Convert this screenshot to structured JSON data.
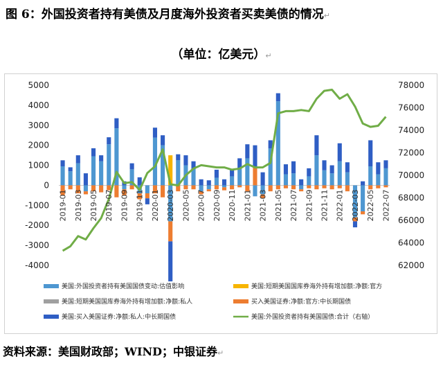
{
  "header": {
    "title": "图 6：外国投资者持有美债及月度海外投资者买卖美债的情况",
    "subtitle": "（单位：亿美元）",
    "source": "资料来源：美国财政部；WIND；中银证券",
    "return_mark": "↵"
  },
  "chart_data": {
    "type": "bar",
    "categories": [
      "2019-01",
      "2019-02",
      "2019-03",
      "2019-04",
      "2019-05",
      "2019-06",
      "2019-07",
      "2019-08",
      "2019-09",
      "2019-10",
      "2019-11",
      "2019-12",
      "2020-01",
      "2020-02",
      "2020-03",
      "2020-04",
      "2020-05",
      "2020-06",
      "2020-07",
      "2020-08",
      "2020-09",
      "2020-10",
      "2020-11",
      "2020-12",
      "2021-01",
      "2021-02",
      "2021-03",
      "2021-04",
      "2021-05",
      "2021-06",
      "2021-07",
      "2021-08",
      "2021-09",
      "2021-10",
      "2021-11",
      "2021-12",
      "2022-01",
      "2022-02",
      "2022-03",
      "2022-04",
      "2022-05",
      "2022-06",
      "2022-07"
    ],
    "xtick_labels": [
      "2019-01",
      "2019-03",
      "2019-05",
      "2019-07",
      "2019-09",
      "2019-11",
      "2020-01",
      "2020-03",
      "2020-05",
      "2020-07",
      "2020-09",
      "2020-11",
      "2021-01",
      "2021-03",
      "2021-05",
      "2021-07",
      "2021-09",
      "2021-11",
      "2022-01",
      "2022-03",
      "2022-05",
      "2022-07"
    ],
    "y_left": {
      "min": -4000,
      "max": 5000,
      "step": 1000
    },
    "y_right": {
      "min": 62000,
      "max": 78000,
      "step": 2000
    },
    "series": [
      {
        "name": "美国:外国投资者持有美国国债变动:估值影响",
        "color": "#4e97d1",
        "stacked": true,
        "values": [
          950,
          700,
          1100,
          -300,
          1450,
          1200,
          2050,
          2850,
          -200,
          800,
          -400,
          -400,
          2380,
          2000,
          -1800,
          1250,
          1000,
          800,
          -300,
          -200,
          380,
          -100,
          450,
          850,
          1350,
          -550,
          -450,
          1850,
          4200,
          550,
          600,
          -200,
          450,
          1500,
          750,
          600,
          1200,
          650,
          -1600,
          -1300,
          950,
          550,
          850
        ]
      },
      {
        "name": "美国:短期美国国库券海外持有增加额:净额:官方",
        "color": "#f7b500",
        "stacked": true,
        "values": [
          0,
          0,
          0,
          0,
          0,
          0,
          0,
          0,
          0,
          0,
          0,
          0,
          0,
          0,
          1500,
          0,
          0,
          0,
          0,
          0,
          0,
          0,
          0,
          0,
          0,
          0,
          0,
          0,
          0,
          0,
          0,
          0,
          0,
          0,
          0,
          0,
          0,
          0,
          0,
          0,
          0,
          0,
          0
        ]
      },
      {
        "name": "美国:短期美国国库券海外持有增加额:净额:私人",
        "color": "#a0a0a0",
        "stacked": true,
        "values": [
          0,
          0,
          0,
          0,
          0,
          0,
          0,
          0,
          0,
          0,
          0,
          0,
          0,
          0,
          0,
          0,
          0,
          0,
          0,
          0,
          0,
          0,
          0,
          0,
          0,
          0,
          0,
          0,
          0,
          0,
          0,
          0,
          0,
          0,
          0,
          0,
          0,
          0,
          0,
          0,
          0,
          0,
          0
        ]
      },
      {
        "name": "买入美国证券:净额:官方:中长期国债",
        "color": "#ed7d31",
        "stacked": true,
        "values": [
          -500,
          -200,
          -400,
          -150,
          -300,
          -350,
          -250,
          -600,
          -300,
          -200,
          -300,
          -250,
          -400,
          -600,
          -1000,
          -300,
          -200,
          -200,
          -150,
          -100,
          -200,
          -150,
          -200,
          -100,
          -300,
          900,
          -200,
          -300,
          -200,
          -150,
          -200,
          -100,
          -150,
          -200,
          -150,
          -200,
          -150,
          -300,
          -200,
          -150,
          -200,
          -150,
          -100
        ]
      },
      {
        "name": "美国:买入美国证券:净额:私人:中长期国债",
        "color": "#2f5ec4",
        "stacked": true,
        "values": [
          300,
          200,
          400,
          600,
          400,
          300,
          350,
          500,
          200,
          300,
          400,
          -300,
          500,
          500,
          -2000,
          300,
          500,
          400,
          300,
          250,
          400,
          300,
          350,
          500,
          700,
          1100,
          650,
          400,
          400,
          500,
          600,
          300,
          400,
          1000,
          500,
          400,
          900,
          500,
          -300,
          200,
          1300,
          600,
          400
        ]
      },
      {
        "name": "美国:外国投资者持有美国国债:合计（右轴）",
        "color": "#70ad47",
        "axis": "right",
        "type": "line",
        "values": [
          63300,
          63700,
          64600,
          64300,
          65300,
          66200,
          67900,
          70300,
          69300,
          69400,
          68700,
          70200,
          70800,
          72300,
          69200,
          69100,
          70000,
          70600,
          70900,
          70800,
          70700,
          70700,
          70500,
          70600,
          71000,
          70700,
          70700,
          71100,
          75500,
          75700,
          75700,
          75800,
          75700,
          76800,
          77500,
          77600,
          76800,
          77200,
          76100,
          74600,
          74300,
          74400,
          75200
        ]
      }
    ],
    "legend": [
      "美国:外国投资者持有美国国债变动:估值影响",
      "美国:短期美国国库券海外持有增加额:净额:官方",
      "美国:短期美国国库券海外持有增加额:净额:私人",
      "买入美国证券:净额:官方:中长期国债",
      "美国:买入美国证券:净额:私人:中长期国债",
      "美国:外国投资者持有美国国债:合计（右轴）"
    ],
    "legend_position": "bottom",
    "grid": false
  }
}
